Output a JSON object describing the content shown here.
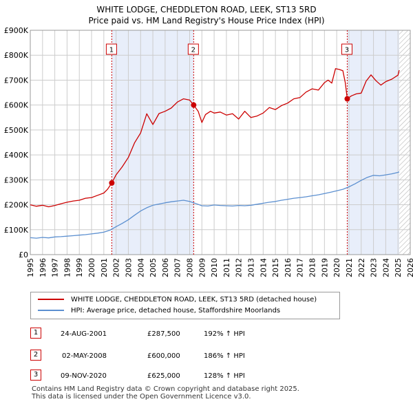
{
  "title_line1": "WHITE LODGE, CHEDDLETON ROAD, LEEK, ST13 5RD",
  "title_line2": "Price paid vs. HM Land Registry's House Price Index (HPI)",
  "colors": {
    "property": "#cc0000",
    "hpi": "#5b8fd0",
    "shade": "#e8eefa",
    "grid": "#cccccc"
  },
  "chart_data": {
    "type": "line",
    "title": "WHITE LODGE, CHEDDLETON ROAD, LEEK, ST13 5RD — Price paid vs. HM Land Registry's House Price Index (HPI)",
    "xlim": [
      1995,
      2026
    ],
    "ylim": [
      0,
      900000
    ],
    "y_ticks": [
      {
        "value": 0,
        "label": "£0"
      },
      {
        "value": 100000,
        "label": "£100K"
      },
      {
        "value": 200000,
        "label": "£200K"
      },
      {
        "value": 300000,
        "label": "£300K"
      },
      {
        "value": 400000,
        "label": "£400K"
      },
      {
        "value": 500000,
        "label": "£500K"
      },
      {
        "value": 600000,
        "label": "£600K"
      },
      {
        "value": 700000,
        "label": "£700K"
      },
      {
        "value": 800000,
        "label": "£800K"
      },
      {
        "value": 900000,
        "label": "£900K"
      }
    ],
    "x_ticks": [
      "1995",
      "1996",
      "1997",
      "1998",
      "1999",
      "2000",
      "2001",
      "2002",
      "2003",
      "2004",
      "2005",
      "2006",
      "2007",
      "2008",
      "2009",
      "2010",
      "2011",
      "2012",
      "2013",
      "2014",
      "2015",
      "2016",
      "2017",
      "2018",
      "2019",
      "2020",
      "2021",
      "2022",
      "2023",
      "2024",
      "2025",
      "2026"
    ],
    "shaded_periods": [
      [
        2001.65,
        2008.33
      ],
      [
        2020.86,
        2025.1
      ]
    ],
    "hatched_after": 2025.1,
    "series": [
      {
        "name": "WHITE LODGE, CHEDDLETON ROAD, LEEK, ST13 5RD (detached house)",
        "color": "#cc0000",
        "x": [
          1995,
          1995.5,
          1996,
          1996.5,
          1997,
          1997.5,
          1998,
          1998.5,
          1999,
          1999.5,
          2000,
          2000.5,
          2001,
          2001.3,
          2001.65,
          2002,
          2002.5,
          2003,
          2003.5,
          2004,
          2004.5,
          2005,
          2005.5,
          2006,
          2006.5,
          2007,
          2007.5,
          2008,
          2008.33,
          2008.7,
          2009,
          2009.3,
          2009.7,
          2010,
          2010.5,
          2011,
          2011.5,
          2012,
          2012.5,
          2013,
          2013.5,
          2014,
          2014.5,
          2015,
          2015.5,
          2016,
          2016.5,
          2017,
          2017.5,
          2018,
          2018.5,
          2019,
          2019.3,
          2019.6,
          2019.9,
          2020.2,
          2020.5,
          2020.7,
          2020.86,
          2021.2,
          2021.6,
          2022,
          2022.4,
          2022.8,
          2023.2,
          2023.6,
          2024,
          2024.5,
          2025,
          2025.1
        ],
        "values": [
          200000,
          194000,
          198000,
          192000,
          197000,
          204000,
          210000,
          215000,
          218000,
          226000,
          229000,
          238000,
          247000,
          262000,
          287500,
          320000,
          352000,
          390000,
          448000,
          488000,
          565000,
          522000,
          566000,
          575000,
          588000,
          612000,
          625000,
          620000,
          600000,
          575000,
          530000,
          562000,
          575000,
          568000,
          572000,
          560000,
          565000,
          544000,
          575000,
          550000,
          556000,
          568000,
          590000,
          582000,
          598000,
          608000,
          625000,
          630000,
          652000,
          665000,
          660000,
          690000,
          700000,
          688000,
          746000,
          743000,
          738000,
          690000,
          625000,
          637000,
          645000,
          648000,
          696000,
          721000,
          698000,
          680000,
          694000,
          704000,
          720000,
          740000
        ]
      },
      {
        "name": "HPI: Average price, detached house, Staffordshire Moorlands",
        "color": "#5b8fd0",
        "x": [
          1995,
          1995.5,
          1996,
          1996.5,
          1997,
          1997.5,
          1998,
          1998.5,
          1999,
          1999.5,
          2000,
          2000.5,
          2001,
          2001.5,
          2002,
          2002.5,
          2003,
          2003.5,
          2004,
          2004.5,
          2005,
          2005.5,
          2006,
          2006.5,
          2007,
          2007.5,
          2008,
          2008.5,
          2009,
          2009.5,
          2010,
          2010.5,
          2011,
          2011.5,
          2012,
          2012.5,
          2013,
          2013.5,
          2014,
          2014.5,
          2015,
          2015.5,
          2016,
          2016.5,
          2017,
          2017.5,
          2018,
          2018.5,
          2019,
          2019.5,
          2020,
          2020.5,
          2021,
          2021.5,
          2022,
          2022.5,
          2023,
          2023.5,
          2024,
          2024.5,
          2025,
          2025.1
        ],
        "values": [
          68000,
          66000,
          69000,
          67000,
          71000,
          72000,
          74000,
          76000,
          78000,
          80000,
          83000,
          86000,
          90000,
          98000,
          112000,
          125000,
          140000,
          158000,
          175000,
          188000,
          198000,
          203000,
          208000,
          212000,
          215000,
          218000,
          213000,
          205000,
          196000,
          195000,
          199000,
          197000,
          196000,
          195000,
          197000,
          196000,
          198000,
          202000,
          206000,
          210000,
          213000,
          218000,
          222000,
          226000,
          229000,
          232000,
          236000,
          240000,
          245000,
          250000,
          256000,
          262000,
          272000,
          284000,
          298000,
          310000,
          318000,
          316000,
          320000,
          324000,
          330000,
          332000
        ]
      }
    ],
    "transactions": [
      {
        "label": "1",
        "x": 2001.65,
        "value": 287500,
        "date": "24-AUG-2001",
        "price": "£287,500",
        "hpi": "192% ↑ HPI"
      },
      {
        "label": "2",
        "x": 2008.33,
        "value": 600000,
        "date": "02-MAY-2008",
        "price": "£600,000",
        "hpi": "186% ↑ HPI"
      },
      {
        "label": "3",
        "x": 2020.86,
        "value": 625000,
        "date": "09-NOV-2020",
        "price": "£625,000",
        "hpi": "128% ↑ HPI"
      }
    ]
  },
  "legend": {
    "property_label": "WHITE LODGE, CHEDDLETON ROAD, LEEK, ST13 5RD (detached house)",
    "hpi_label": "HPI: Average price, detached house, Staffordshire Moorlands"
  },
  "footer": {
    "line1": "Contains HM Land Registry data © Crown copyright and database right 2025.",
    "line2": "This data is licensed under the Open Government Licence v3.0."
  }
}
